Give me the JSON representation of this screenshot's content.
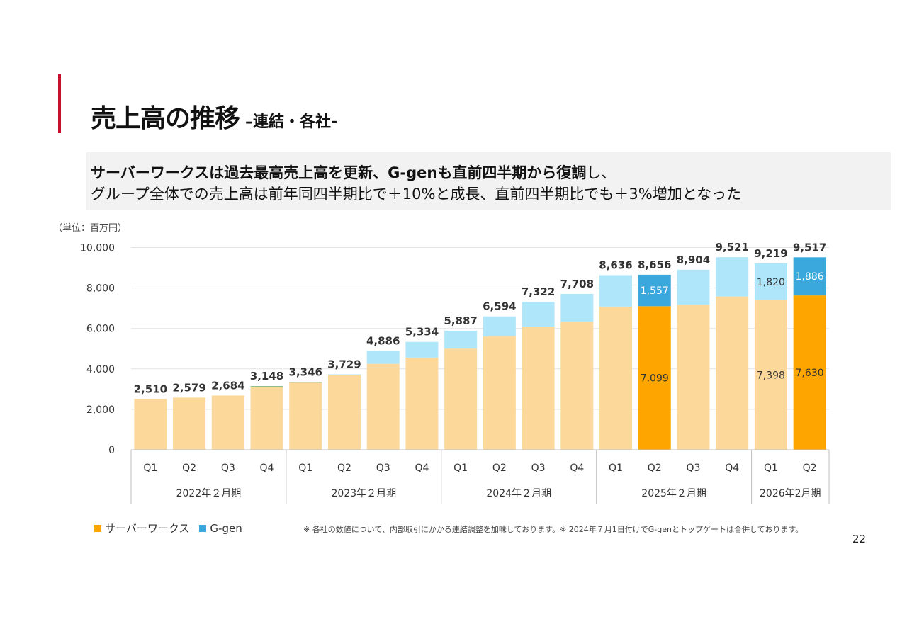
{
  "slide": {
    "title": "売上高の推移",
    "title_suffix": "–連結・各社-",
    "summary_line1_bold": "サーバーワークスは過去最高売上高を更新、G-genも直前四半期から復調",
    "summary_line1_rest": "し、",
    "summary_line2": "グループ全体での売上高は前年同四半期比で＋10%と成長、直前四半期比でも＋3%増加となった",
    "unit": "（単位：百万円）",
    "note": "※ 各社の数値について、内部取引にかかる連結調整を加味しております。※ 2024年７月1日付けでG-genとトップゲートは合併しております。",
    "page_number": "22"
  },
  "legend": {
    "serverworks": "サーバーワークス",
    "ggen": "G-gen"
  },
  "colors": {
    "accent_bar": "#c8102e",
    "serverworks_highlight": "#ffa500",
    "serverworks_light": "#fcd99a",
    "ggen_highlight": "#3aa8dd",
    "ggen_light": "#b0e6fa",
    "gridline": "#e3e3e3",
    "axis": "#bfbfbf"
  },
  "chart_data": {
    "type": "bar",
    "stacked": true,
    "ylim": [
      0,
      10000
    ],
    "yticks": [
      0,
      2000,
      4000,
      6000,
      8000,
      10000
    ],
    "ytick_labels": [
      "0",
      "2,000",
      "4,000",
      "6,000",
      "8,000",
      "10,000"
    ],
    "quarters": [
      "Q1",
      "Q2",
      "Q3",
      "Q4",
      "Q1",
      "Q2",
      "Q3",
      "Q4",
      "Q1",
      "Q2",
      "Q3",
      "Q4",
      "Q1",
      "Q2",
      "Q3",
      "Q4",
      "Q1",
      "Q2"
    ],
    "groups": [
      {
        "label": "2022年２月期",
        "count": 4
      },
      {
        "label": "2023年２月期",
        "count": 4
      },
      {
        "label": "2024年２月期",
        "count": 4
      },
      {
        "label": "2025年２月期",
        "count": 4
      },
      {
        "label": "2026年2月期",
        "count": 2
      }
    ],
    "totals": [
      2510,
      2579,
      2684,
      3148,
      3346,
      3729,
      4886,
      5334,
      5887,
      6594,
      7322,
      7708,
      8636,
      8656,
      8904,
      9521,
      9219,
      9517
    ],
    "total_labels": [
      "2,510",
      "2,579",
      "2,684",
      "3,148",
      "3,346",
      "3,729",
      "4,886",
      "5,334",
      "5,887",
      "6,594",
      "7,322",
      "7,708",
      "8,636",
      "8,656",
      "8,904",
      "9,521",
      "9,219",
      "9,517"
    ],
    "series": [
      {
        "name": "サーバーワークス",
        "values": [
          2510,
          2579,
          2684,
          3125,
          3320,
          3700,
          4250,
          4560,
          5000,
          5600,
          6080,
          6330,
          7080,
          7099,
          7170,
          7580,
          7398,
          7630
        ]
      },
      {
        "name": "G-gen",
        "values": [
          0,
          0,
          0,
          23,
          26,
          29,
          636,
          774,
          887,
          994,
          1242,
          1378,
          1556,
          1557,
          1734,
          1941,
          1820,
          1886
        ]
      }
    ],
    "highlight_indices": [
      13,
      17
    ],
    "segment_labels": [
      {
        "index": 13,
        "series": 0,
        "text": "7,099"
      },
      {
        "index": 13,
        "series": 1,
        "text": "1,557"
      },
      {
        "index": 16,
        "series": 0,
        "text": "7,398"
      },
      {
        "index": 16,
        "series": 1,
        "text": "1,820"
      },
      {
        "index": 17,
        "series": 0,
        "text": "7,630"
      },
      {
        "index": 17,
        "series": 1,
        "text": "1,886"
      }
    ]
  }
}
